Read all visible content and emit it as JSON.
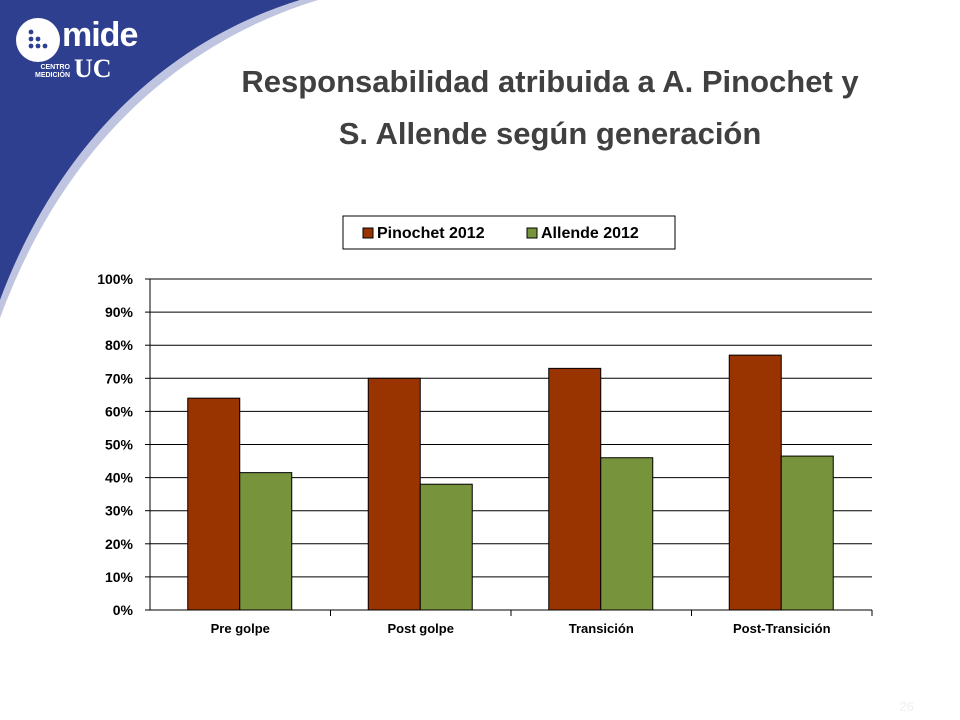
{
  "slide": {
    "title_line1": "Responsabilidad atribuida a A. Pinochet y",
    "title_line2": "S. Allende según generación",
    "page_number": "26"
  },
  "logo": {
    "word": "mide",
    "center": "CENTRO\nMEDICIÓN",
    "uc": "UC"
  },
  "colors": {
    "brand_blue": "#2f3f8f",
    "pinochet": "#993300",
    "allende": "#77933c"
  },
  "chart_data": {
    "type": "bar",
    "categories": [
      "Pre golpe",
      "Post golpe",
      "Transición",
      "Post-Transición"
    ],
    "series": [
      {
        "name": "Pinochet 2012",
        "values": [
          0.64,
          0.7,
          0.73,
          0.77
        ],
        "color": "#993300"
      },
      {
        "name": "Allende 2012",
        "values": [
          0.415,
          0.38,
          0.46,
          0.465
        ],
        "color": "#77933c"
      }
    ],
    "ylim": [
      0,
      1
    ],
    "yticks": [
      0,
      0.1,
      0.2,
      0.3,
      0.4,
      0.5,
      0.6,
      0.7,
      0.8,
      0.9,
      1.0
    ],
    "ytick_labels": [
      "0%",
      "10%",
      "20%",
      "30%",
      "40%",
      "50%",
      "60%",
      "70%",
      "80%",
      "90%",
      "100%"
    ],
    "grid": true,
    "legend": "top-center",
    "title": "",
    "xlabel": "",
    "ylabel": ""
  }
}
